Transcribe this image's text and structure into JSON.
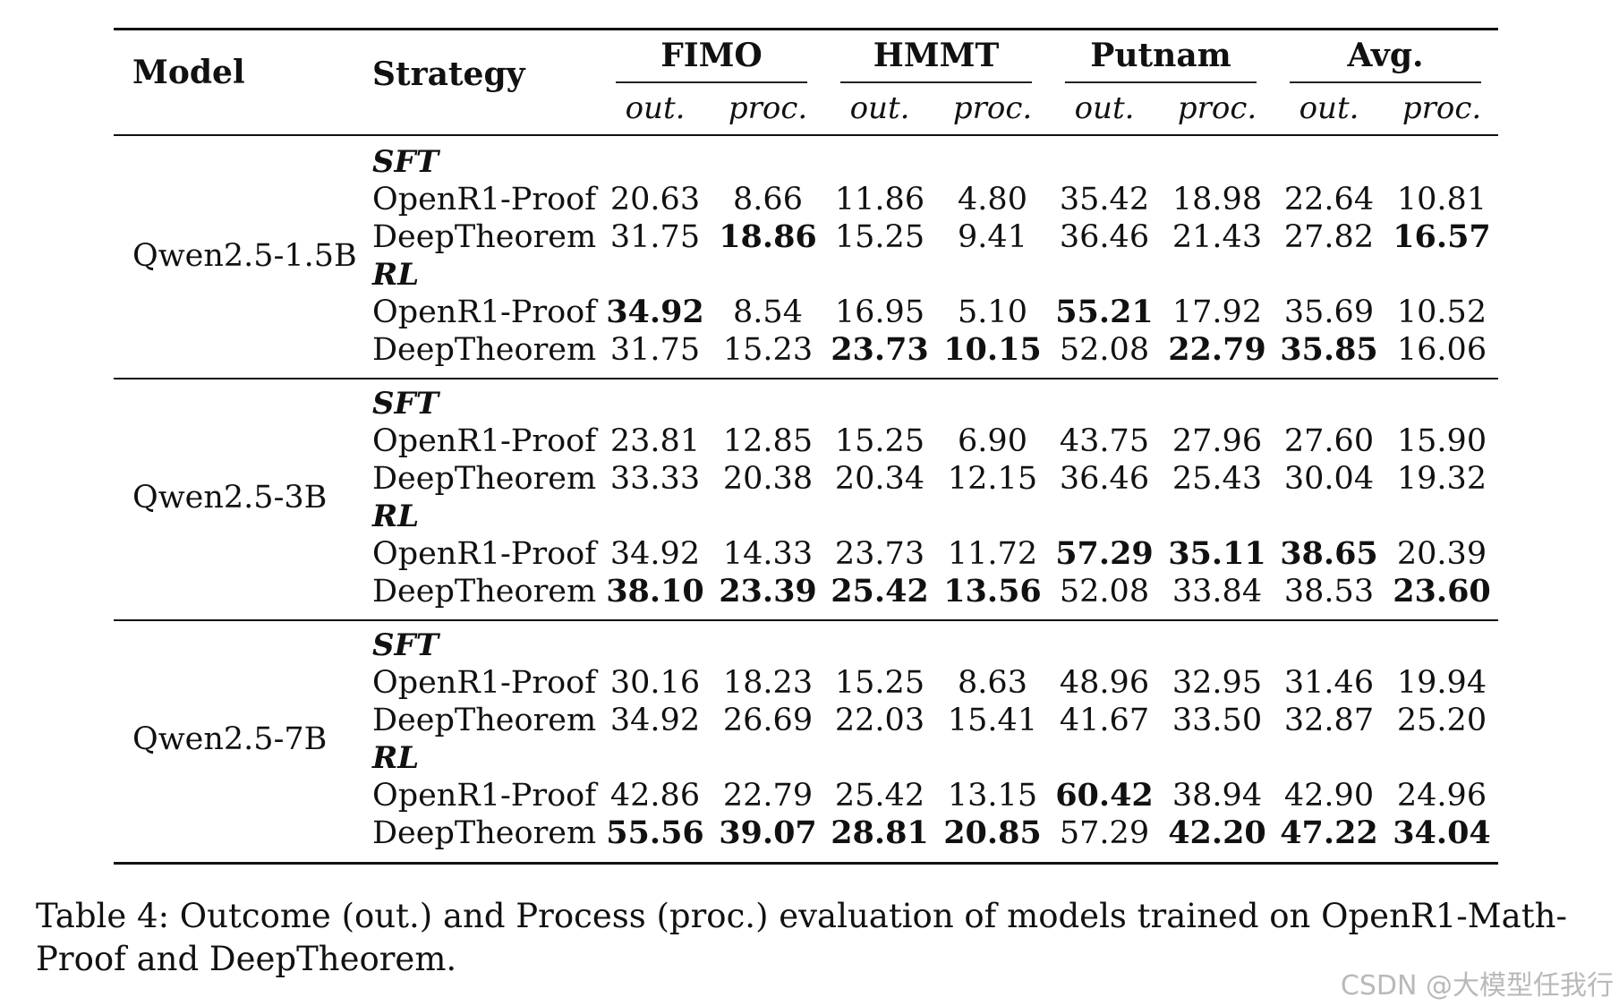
{
  "table": {
    "header": {
      "model": "Model",
      "strategy": "Strategy",
      "groups": [
        "FIMO",
        "HMMT",
        "Putnam",
        "Avg."
      ],
      "subcols": [
        "out.",
        "proc.",
        "out.",
        "proc.",
        "out.",
        "proc.",
        "out.",
        "proc."
      ]
    },
    "blocks": [
      {
        "model": "Qwen2.5-1.5B",
        "sections": [
          {
            "label": "SFT",
            "rows": [
              {
                "strategy": "OpenR1-Proof",
                "values": [
                  "20.63",
                  "8.66",
                  "11.86",
                  "4.80",
                  "35.42",
                  "18.98",
                  "22.64",
                  "10.81"
                ],
                "bold": [
                  false,
                  false,
                  false,
                  false,
                  false,
                  false,
                  false,
                  false
                ]
              },
              {
                "strategy": "DeepTheorem",
                "values": [
                  "31.75",
                  "18.86",
                  "15.25",
                  "9.41",
                  "36.46",
                  "21.43",
                  "27.82",
                  "16.57"
                ],
                "bold": [
                  false,
                  true,
                  false,
                  false,
                  false,
                  false,
                  false,
                  true
                ]
              }
            ]
          },
          {
            "label": "RL",
            "rows": [
              {
                "strategy": "OpenR1-Proof",
                "values": [
                  "34.92",
                  "8.54",
                  "16.95",
                  "5.10",
                  "55.21",
                  "17.92",
                  "35.69",
                  "10.52"
                ],
                "bold": [
                  true,
                  false,
                  false,
                  false,
                  true,
                  false,
                  false,
                  false
                ]
              },
              {
                "strategy": "DeepTheorem",
                "values": [
                  "31.75",
                  "15.23",
                  "23.73",
                  "10.15",
                  "52.08",
                  "22.79",
                  "35.85",
                  "16.06"
                ],
                "bold": [
                  false,
                  false,
                  true,
                  true,
                  false,
                  true,
                  true,
                  false
                ]
              }
            ]
          }
        ]
      },
      {
        "model": "Qwen2.5-3B",
        "sections": [
          {
            "label": "SFT",
            "rows": [
              {
                "strategy": "OpenR1-Proof",
                "values": [
                  "23.81",
                  "12.85",
                  "15.25",
                  "6.90",
                  "43.75",
                  "27.96",
                  "27.60",
                  "15.90"
                ],
                "bold": [
                  false,
                  false,
                  false,
                  false,
                  false,
                  false,
                  false,
                  false
                ]
              },
              {
                "strategy": "DeepTheorem",
                "values": [
                  "33.33",
                  "20.38",
                  "20.34",
                  "12.15",
                  "36.46",
                  "25.43",
                  "30.04",
                  "19.32"
                ],
                "bold": [
                  false,
                  false,
                  false,
                  false,
                  false,
                  false,
                  false,
                  false
                ]
              }
            ]
          },
          {
            "label": "RL",
            "rows": [
              {
                "strategy": "OpenR1-Proof",
                "values": [
                  "34.92",
                  "14.33",
                  "23.73",
                  "11.72",
                  "57.29",
                  "35.11",
                  "38.65",
                  "20.39"
                ],
                "bold": [
                  false,
                  false,
                  false,
                  false,
                  true,
                  true,
                  true,
                  false
                ]
              },
              {
                "strategy": "DeepTheorem",
                "values": [
                  "38.10",
                  "23.39",
                  "25.42",
                  "13.56",
                  "52.08",
                  "33.84",
                  "38.53",
                  "23.60"
                ],
                "bold": [
                  true,
                  true,
                  true,
                  true,
                  false,
                  false,
                  false,
                  true
                ]
              }
            ]
          }
        ]
      },
      {
        "model": "Qwen2.5-7B",
        "sections": [
          {
            "label": "SFT",
            "rows": [
              {
                "strategy": "OpenR1-Proof",
                "values": [
                  "30.16",
                  "18.23",
                  "15.25",
                  "8.63",
                  "48.96",
                  "32.95",
                  "31.46",
                  "19.94"
                ],
                "bold": [
                  false,
                  false,
                  false,
                  false,
                  false,
                  false,
                  false,
                  false
                ]
              },
              {
                "strategy": "DeepTheorem",
                "values": [
                  "34.92",
                  "26.69",
                  "22.03",
                  "15.41",
                  "41.67",
                  "33.50",
                  "32.87",
                  "25.20"
                ],
                "bold": [
                  false,
                  false,
                  false,
                  false,
                  false,
                  false,
                  false,
                  false
                ]
              }
            ]
          },
          {
            "label": "RL",
            "rows": [
              {
                "strategy": "OpenR1-Proof",
                "values": [
                  "42.86",
                  "22.79",
                  "25.42",
                  "13.15",
                  "60.42",
                  "38.94",
                  "42.90",
                  "24.96"
                ],
                "bold": [
                  false,
                  false,
                  false,
                  false,
                  true,
                  false,
                  false,
                  false
                ]
              },
              {
                "strategy": "DeepTheorem",
                "values": [
                  "55.56",
                  "39.07",
                  "28.81",
                  "20.85",
                  "57.29",
                  "42.20",
                  "47.22",
                  "34.04"
                ],
                "bold": [
                  true,
                  true,
                  true,
                  true,
                  false,
                  true,
                  true,
                  true
                ]
              }
            ]
          }
        ]
      }
    ]
  },
  "caption": "Table 4: Outcome (out.) and Process (proc.) evaluation of models trained on OpenR1-Math-Proof and DeepTheorem.",
  "watermark": "CSDN @大模型任我行"
}
